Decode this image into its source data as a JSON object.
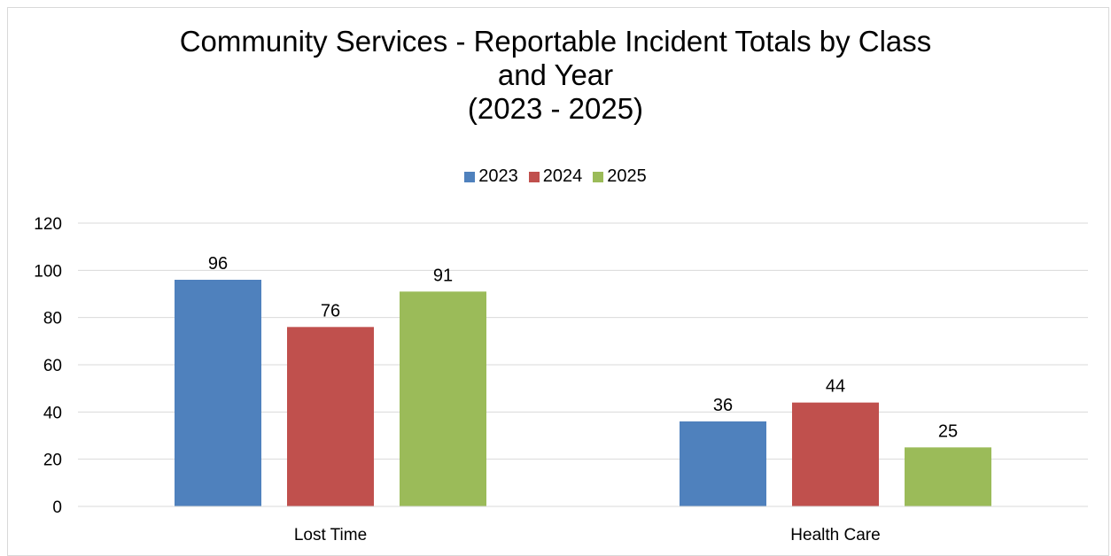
{
  "chart_data": {
    "type": "bar",
    "title_lines": [
      "Community Services - Reportable Incident Totals by Class",
      "and Year",
      "(2023 - 2025)"
    ],
    "categories": [
      "Lost Time",
      "Health Care"
    ],
    "series": [
      {
        "name": "2023",
        "values": [
          96,
          36
        ],
        "color": "#4f81bd"
      },
      {
        "name": "2024",
        "values": [
          76,
          44
        ],
        "color": "#c0504d"
      },
      {
        "name": "2025",
        "values": [
          91,
          25
        ],
        "color": "#9bbb59"
      }
    ],
    "ylim": [
      0,
      120
    ],
    "yticks": [
      "0",
      "20",
      "40",
      "60",
      "80",
      "100",
      "120"
    ],
    "grid": true,
    "legend_position": "top",
    "data_labels": true
  }
}
